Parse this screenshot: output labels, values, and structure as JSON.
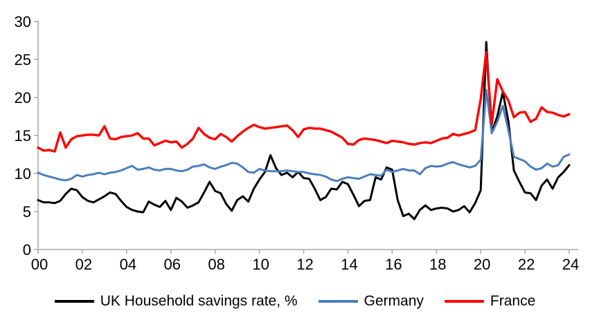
{
  "chart_data": {
    "type": "line",
    "frequency": "quarterly",
    "x_start": "2000 Q1",
    "x_end": "2024 Q1",
    "x_tick_labels": [
      "00",
      "02",
      "04",
      "06",
      "08",
      "10",
      "12",
      "14",
      "16",
      "18",
      "20",
      "22",
      "24"
    ],
    "y_tick_labels": [
      "0",
      "5",
      "10",
      "15",
      "20",
      "25",
      "30"
    ],
    "y_tick_values": [
      0,
      5,
      10,
      15,
      20,
      25,
      30
    ],
    "ylim": [
      0,
      30
    ],
    "xlabel": "",
    "ylabel": "",
    "grid": false,
    "legend_position": "bottom",
    "series": [
      {
        "key": "uk",
        "name": "UK Household savings rate, %",
        "color": "#000000",
        "values": [
          6.5,
          6.2,
          6.2,
          6.1,
          6.4,
          7.3,
          8.0,
          7.8,
          6.9,
          6.4,
          6.2,
          6.6,
          7.0,
          7.5,
          7.3,
          6.4,
          5.6,
          5.2,
          5.0,
          4.9,
          6.3,
          5.9,
          5.6,
          6.4,
          5.2,
          6.8,
          6.3,
          5.5,
          5.8,
          6.2,
          7.5,
          8.9,
          7.7,
          7.4,
          6.0,
          5.1,
          6.5,
          7.0,
          6.3,
          8.0,
          9.2,
          10.2,
          12.4,
          10.7,
          9.8,
          10.1,
          9.5,
          10.2,
          9.4,
          9.3,
          8.0,
          6.5,
          6.9,
          8.0,
          7.9,
          8.9,
          8.6,
          7.2,
          5.7,
          6.4,
          6.5,
          9.5,
          9.2,
          10.8,
          10.5,
          6.5,
          4.4,
          4.7,
          4.0,
          5.2,
          5.8,
          5.2,
          5.4,
          5.5,
          5.4,
          5.0,
          5.2,
          5.7,
          4.9,
          6.1,
          7.8,
          27.3,
          15.4,
          17.5,
          20.7,
          16.9,
          10.4,
          8.9,
          7.5,
          7.4,
          6.5,
          8.4,
          9.2,
          8.0,
          9.5,
          10.2,
          11.1
        ]
      },
      {
        "key": "germany",
        "name": "Germany",
        "color": "#4a7ebb",
        "values": [
          10.1,
          9.8,
          9.6,
          9.4,
          9.2,
          9.1,
          9.3,
          9.8,
          9.6,
          9.8,
          9.9,
          10.1,
          9.9,
          10.1,
          10.2,
          10.4,
          10.7,
          11.0,
          10.5,
          10.6,
          10.8,
          10.5,
          10.4,
          10.6,
          10.6,
          10.4,
          10.3,
          10.5,
          10.9,
          11.0,
          11.2,
          10.8,
          10.6,
          10.9,
          11.1,
          11.4,
          11.3,
          10.8,
          10.2,
          10.1,
          10.6,
          10.4,
          10.3,
          10.3,
          10.3,
          10.4,
          10.3,
          10.2,
          10.2,
          10.0,
          9.9,
          9.8,
          9.6,
          9.2,
          9.0,
          9.3,
          9.5,
          9.4,
          9.3,
          9.6,
          9.9,
          9.8,
          9.7,
          10.5,
          10.2,
          10.4,
          10.6,
          10.4,
          10.4,
          9.9,
          10.7,
          11.0,
          10.9,
          11.0,
          11.3,
          11.5,
          11.2,
          11.0,
          10.8,
          11.0,
          11.8,
          21.0,
          15.3,
          16.8,
          18.9,
          15.7,
          12.2,
          11.9,
          11.6,
          10.9,
          10.5,
          10.7,
          11.3,
          10.9,
          11.1,
          12.2,
          12.5
        ]
      },
      {
        "key": "france",
        "name": "France",
        "color": "#fe0000",
        "values": [
          13.4,
          13.0,
          13.1,
          12.9,
          15.4,
          13.4,
          14.5,
          14.9,
          15.0,
          15.1,
          15.1,
          15.0,
          16.2,
          14.6,
          14.5,
          14.8,
          14.9,
          15.0,
          15.3,
          14.6,
          14.6,
          13.7,
          14.0,
          14.3,
          14.1,
          14.2,
          13.4,
          13.9,
          14.6,
          16.0,
          15.2,
          14.7,
          14.5,
          15.2,
          14.8,
          14.2,
          14.9,
          15.5,
          16.0,
          16.4,
          16.1,
          15.9,
          16.0,
          16.1,
          16.2,
          16.3,
          15.7,
          14.8,
          15.8,
          16.0,
          15.9,
          15.9,
          15.7,
          15.5,
          15.1,
          14.7,
          13.9,
          13.8,
          14.4,
          14.6,
          14.5,
          14.4,
          14.2,
          14.0,
          14.3,
          14.2,
          14.1,
          13.9,
          13.8,
          14.0,
          14.1,
          14.0,
          14.3,
          14.6,
          14.7,
          15.2,
          15.0,
          15.2,
          15.4,
          15.7,
          19.8,
          26.0,
          16.5,
          22.4,
          20.8,
          19.6,
          17.4,
          18.0,
          18.1,
          16.8,
          17.2,
          18.7,
          18.1,
          18.0,
          17.7,
          17.5,
          17.8
        ]
      }
    ]
  },
  "axes": {
    "axis_color": "#a6a6a6",
    "tick_label_color": "#000000"
  }
}
